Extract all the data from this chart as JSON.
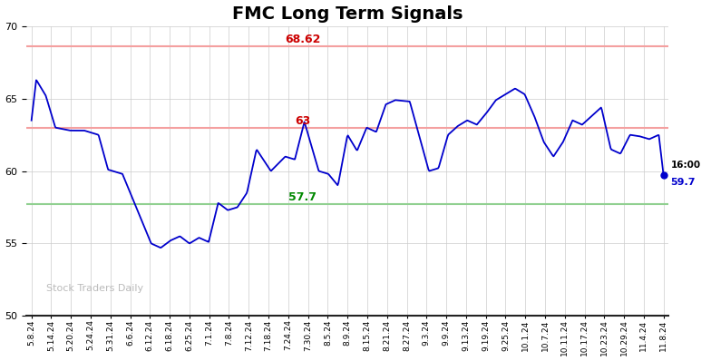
{
  "title": "FMC Long Term Signals",
  "title_fontsize": 14,
  "ylim": [
    50,
    70
  ],
  "yticks": [
    50,
    55,
    60,
    65,
    70
  ],
  "line_color": "#0000cc",
  "line_width": 1.3,
  "upper_line": 68.62,
  "upper_line_color": "#f4a0a0",
  "upper_line_label_color": "#cc0000",
  "upper_line_label": "68.62",
  "mid_line": 63.0,
  "mid_line_color": "#f4a0a0",
  "mid_line_label_color": "#cc0000",
  "mid_line_label": "63",
  "lower_line": 57.7,
  "lower_line_color": "#90d090",
  "lower_line_label_color": "#008800",
  "lower_line_label": "57.7",
  "watermark": "Stock Traders Daily",
  "watermark_color": "#bbbbbb",
  "last_label": "16:00",
  "last_value": "59.7",
  "last_dot_color": "#0000cc",
  "background_color": "#ffffff",
  "grid_color": "#cccccc",
  "tick_labels": [
    "5.8.24",
    "5.14.24",
    "5.20.24",
    "5.24.24",
    "5.31.24",
    "6.6.24",
    "6.12.24",
    "6.18.24",
    "6.25.24",
    "7.1.24",
    "7.8.24",
    "7.12.24",
    "7.18.24",
    "7.24.24",
    "7.30.24",
    "8.5.24",
    "8.9.24",
    "8.15.24",
    "8.21.24",
    "8.27.24",
    "9.3.24",
    "9.9.24",
    "9.13.24",
    "9.19.24",
    "9.25.24",
    "10.1.24",
    "10.7.24",
    "10.11.24",
    "10.17.24",
    "10.23.24",
    "10.29.24",
    "11.4.24",
    "11.8.24"
  ],
  "key_x": [
    0,
    1,
    3,
    5,
    8,
    11,
    14,
    16,
    19,
    22,
    25,
    27,
    29,
    31,
    33,
    35,
    37,
    39,
    41,
    43,
    45,
    47,
    50,
    53,
    55,
    57,
    60,
    62,
    64,
    66,
    68,
    70,
    72,
    74,
    76,
    79,
    81,
    83,
    85,
    87,
    89,
    91,
    93,
    95,
    97,
    99,
    101,
    103,
    105,
    107,
    109,
    111,
    113,
    115,
    117,
    119,
    121,
    123,
    125,
    127,
    129,
    131,
    132
  ],
  "key_y": [
    63.5,
    66.3,
    65.2,
    63.0,
    62.8,
    62.8,
    62.5,
    60.1,
    59.8,
    57.4,
    55.0,
    54.7,
    55.2,
    55.5,
    55.0,
    55.4,
    55.1,
    57.8,
    57.3,
    57.5,
    58.5,
    61.5,
    60.0,
    61.0,
    60.8,
    63.4,
    60.0,
    59.8,
    59.0,
    62.5,
    61.4,
    63.0,
    62.7,
    64.6,
    64.9,
    64.8,
    62.4,
    60.0,
    60.2,
    62.5,
    63.1,
    63.5,
    63.2,
    64.0,
    64.9,
    65.3,
    65.7,
    65.3,
    63.8,
    62.0,
    61.0,
    62.0,
    63.5,
    63.2,
    63.8,
    64.4,
    61.5,
    61.2,
    62.5,
    62.4,
    62.2,
    62.5,
    59.7
  ]
}
